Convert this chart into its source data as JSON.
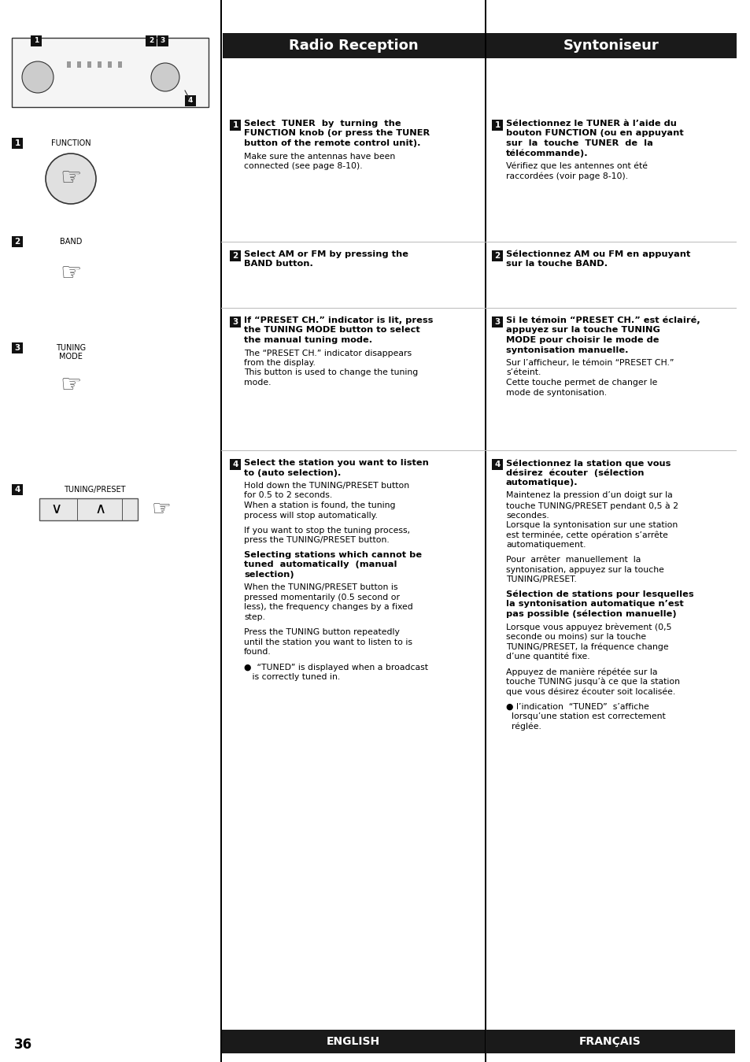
{
  "page_bg": "#ffffff",
  "header_bg": "#1a1a1a",
  "header_text_color": "#ffffff",
  "header_left": "Radio Reception",
  "header_right": "Syntoniseur",
  "footer_bg": "#1a1a1a",
  "footer_text_color": "#ffffff",
  "footer_left": "ENGLISH",
  "footer_right": "FRANÇAIS",
  "page_number": "36",
  "divider_color": "#000000",
  "text_color": "#000000"
}
